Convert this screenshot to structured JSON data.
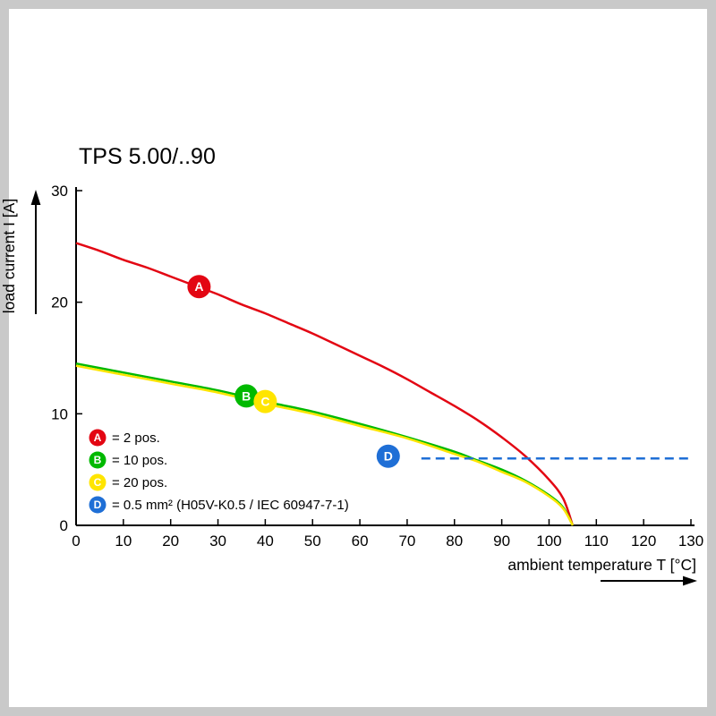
{
  "page": {
    "background": "#ffffff",
    "frame_color": "#c9c9c9"
  },
  "chart_data": {
    "type": "line",
    "title": "TPS 5.00/..90",
    "xlabel": "ambient temperature T [°C]",
    "ylabel": "load current I [A]",
    "xlim": [
      0,
      130
    ],
    "ylim": [
      0,
      30
    ],
    "x_ticks": [
      0,
      10,
      20,
      30,
      40,
      50,
      60,
      70,
      80,
      90,
      100,
      110,
      120,
      130
    ],
    "y_ticks": [
      0,
      10,
      20,
      30
    ],
    "grid": false,
    "legend_position": "inside-bottom-left",
    "axis_color": "#000000",
    "series": [
      {
        "id": "A",
        "name": "2 pos.",
        "legend_label": "= 2 pos.",
        "color": "#e30613",
        "line_style": "solid",
        "marker": {
          "x": 26,
          "y": 21.4
        },
        "points": [
          [
            0,
            25.3
          ],
          [
            5,
            24.6
          ],
          [
            10,
            23.8
          ],
          [
            15,
            23.1
          ],
          [
            20,
            22.3
          ],
          [
            25,
            21.5
          ],
          [
            30,
            20.7
          ],
          [
            35,
            19.8
          ],
          [
            40,
            19.0
          ],
          [
            45,
            18.1
          ],
          [
            50,
            17.2
          ],
          [
            55,
            16.2
          ],
          [
            60,
            15.2
          ],
          [
            65,
            14.2
          ],
          [
            70,
            13.1
          ],
          [
            75,
            11.9
          ],
          [
            80,
            10.7
          ],
          [
            85,
            9.4
          ],
          [
            90,
            7.9
          ],
          [
            95,
            6.2
          ],
          [
            100,
            4.1
          ],
          [
            103,
            2.4
          ],
          [
            105,
            0
          ]
        ]
      },
      {
        "id": "B",
        "name": "10 pos.",
        "legend_label": "= 10 pos.",
        "color": "#00b900",
        "line_style": "solid",
        "marker": {
          "x": 36,
          "y": 11.6
        },
        "points": [
          [
            0,
            14.5
          ],
          [
            10,
            13.7
          ],
          [
            20,
            12.9
          ],
          [
            30,
            12.1
          ],
          [
            40,
            11.1
          ],
          [
            50,
            10.2
          ],
          [
            60,
            9.1
          ],
          [
            70,
            7.9
          ],
          [
            80,
            6.6
          ],
          [
            85,
            5.8
          ],
          [
            90,
            5.0
          ],
          [
            95,
            4.0
          ],
          [
            100,
            2.7
          ],
          [
            103,
            1.6
          ],
          [
            105,
            0
          ]
        ]
      },
      {
        "id": "C",
        "name": "20 pos.",
        "legend_label": "= 20 pos.",
        "color": "#ffe500",
        "line_style": "solid",
        "marker": {
          "x": 40,
          "y": 11.1
        },
        "points": [
          [
            0,
            14.3
          ],
          [
            10,
            13.5
          ],
          [
            20,
            12.7
          ],
          [
            30,
            11.9
          ],
          [
            40,
            10.9
          ],
          [
            50,
            10.0
          ],
          [
            60,
            8.9
          ],
          [
            70,
            7.8
          ],
          [
            80,
            6.4
          ],
          [
            85,
            5.7
          ],
          [
            90,
            4.8
          ],
          [
            95,
            3.9
          ],
          [
            100,
            2.6
          ],
          [
            103,
            1.5
          ],
          [
            105,
            0
          ]
        ]
      },
      {
        "id": "D",
        "name": "0.5 mm² (H05V-K0.5 / IEC 60947-7-1)",
        "legend_label": "= 0.5 mm² (H05V-K0.5 / IEC 60947-7-1)",
        "color": "#1f6fd6",
        "line_style": "dashed",
        "marker": {
          "x": 66,
          "y": 6.2
        },
        "points": [
          [
            73,
            6
          ],
          [
            130,
            6
          ]
        ]
      }
    ]
  }
}
